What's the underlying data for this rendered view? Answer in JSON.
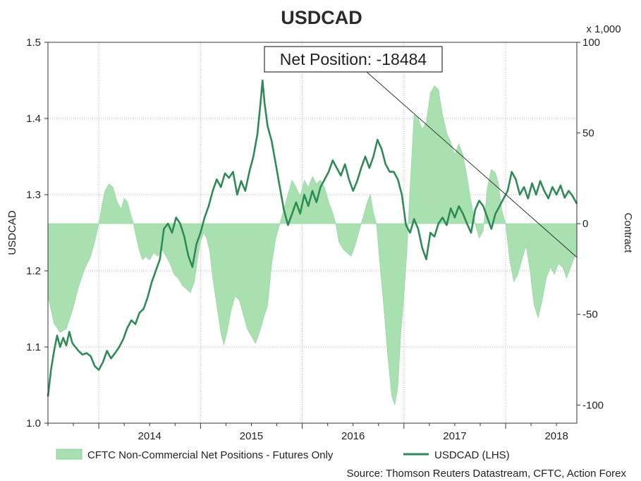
{
  "chart_data": {
    "type": "line+area",
    "title": "USDCAD",
    "x_axis": {
      "labels": [
        "2014",
        "2015",
        "2016",
        "2017",
        "2018"
      ],
      "range": [
        2013.5,
        2018.7
      ]
    },
    "y_left": {
      "label": "USDCAD",
      "range": [
        1.0,
        1.5
      ],
      "ticks": [
        "1.0",
        "1.1",
        "1.2",
        "1.3",
        "1.4",
        "1.5"
      ]
    },
    "y_right": {
      "label": "Contract",
      "unit_label": "x 1,000",
      "range": [
        -110,
        100
      ],
      "ticks": [
        "-100",
        "-50",
        "0",
        "50",
        "100"
      ]
    },
    "grid": "dotted",
    "series": [
      {
        "name": "CFTC Non-Commercial Net Positions - Futures Only",
        "type": "area",
        "axis": "right",
        "color": "#a8e0b0",
        "points": [
          [
            2013.5,
            -40
          ],
          [
            2013.56,
            -55
          ],
          [
            2013.62,
            -60
          ],
          [
            2013.68,
            -58
          ],
          [
            2013.74,
            -48
          ],
          [
            2013.8,
            -35
          ],
          [
            2013.86,
            -25
          ],
          [
            2013.92,
            -18
          ],
          [
            2013.96,
            -10
          ],
          [
            2014.0,
            0
          ],
          [
            2014.03,
            10
          ],
          [
            2014.06,
            18
          ],
          [
            2014.1,
            22
          ],
          [
            2014.14,
            20
          ],
          [
            2014.18,
            12
          ],
          [
            2014.22,
            8
          ],
          [
            2014.25,
            14
          ],
          [
            2014.28,
            12
          ],
          [
            2014.31,
            6
          ],
          [
            2014.34,
            0
          ],
          [
            2014.37,
            -8
          ],
          [
            2014.4,
            -15
          ],
          [
            2014.43,
            -20
          ],
          [
            2014.46,
            -18
          ],
          [
            2014.5,
            -20
          ],
          [
            2014.54,
            -16
          ],
          [
            2014.58,
            -18
          ],
          [
            2014.62,
            -14
          ],
          [
            2014.66,
            -18
          ],
          [
            2014.7,
            -22
          ],
          [
            2014.74,
            -28
          ],
          [
            2014.78,
            -30
          ],
          [
            2014.82,
            -34
          ],
          [
            2014.86,
            -36
          ],
          [
            2014.9,
            -38
          ],
          [
            2014.94,
            -32
          ],
          [
            2014.97,
            -20
          ],
          [
            2015.0,
            -10
          ],
          [
            2015.03,
            -5
          ],
          [
            2015.06,
            -8
          ],
          [
            2015.09,
            -15
          ],
          [
            2015.12,
            -30
          ],
          [
            2015.16,
            -45
          ],
          [
            2015.2,
            -60
          ],
          [
            2015.23,
            -67
          ],
          [
            2015.26,
            -60
          ],
          [
            2015.3,
            -48
          ],
          [
            2015.34,
            -40
          ],
          [
            2015.38,
            -42
          ],
          [
            2015.42,
            -50
          ],
          [
            2015.46,
            -58
          ],
          [
            2015.5,
            -62
          ],
          [
            2015.54,
            -66
          ],
          [
            2015.58,
            -60
          ],
          [
            2015.62,
            -52
          ],
          [
            2015.66,
            -45
          ],
          [
            2015.7,
            -22
          ],
          [
            2015.74,
            -8
          ],
          [
            2015.78,
            0
          ],
          [
            2015.82,
            8
          ],
          [
            2015.86,
            16
          ],
          [
            2015.9,
            24
          ],
          [
            2015.94,
            20
          ],
          [
            2015.98,
            15
          ],
          [
            2016.02,
            24
          ],
          [
            2016.06,
            20
          ],
          [
            2016.1,
            26
          ],
          [
            2016.14,
            22
          ],
          [
            2016.18,
            24
          ],
          [
            2016.22,
            20
          ],
          [
            2016.26,
            12
          ],
          [
            2016.3,
            6
          ],
          [
            2016.33,
            0
          ],
          [
            2016.36,
            -10
          ],
          [
            2016.4,
            -14
          ],
          [
            2016.44,
            -16
          ],
          [
            2016.48,
            -18
          ],
          [
            2016.52,
            -12
          ],
          [
            2016.56,
            -4
          ],
          [
            2016.6,
            4
          ],
          [
            2016.64,
            12
          ],
          [
            2016.67,
            16
          ],
          [
            2016.7,
            6
          ],
          [
            2016.73,
            0
          ],
          [
            2016.76,
            -20
          ],
          [
            2016.8,
            -45
          ],
          [
            2016.84,
            -72
          ],
          [
            2016.88,
            -95
          ],
          [
            2016.91,
            -100
          ],
          [
            2016.94,
            -90
          ],
          [
            2016.97,
            -60
          ],
          [
            2017.0,
            -40
          ],
          [
            2017.03,
            -15
          ],
          [
            2017.06,
            20
          ],
          [
            2017.1,
            60
          ],
          [
            2017.14,
            58
          ],
          [
            2017.18,
            52
          ],
          [
            2017.22,
            56
          ],
          [
            2017.26,
            72
          ],
          [
            2017.3,
            76
          ],
          [
            2017.34,
            74
          ],
          [
            2017.38,
            60
          ],
          [
            2017.42,
            50
          ],
          [
            2017.46,
            45
          ],
          [
            2017.5,
            38
          ],
          [
            2017.54,
            44
          ],
          [
            2017.58,
            38
          ],
          [
            2017.62,
            26
          ],
          [
            2017.66,
            12
          ],
          [
            2017.7,
            0
          ],
          [
            2017.74,
            -8
          ],
          [
            2017.78,
            -4
          ],
          [
            2017.82,
            20
          ],
          [
            2017.86,
            30
          ],
          [
            2017.9,
            28
          ],
          [
            2017.93,
            22
          ],
          [
            2017.96,
            8
          ],
          [
            2018.0,
            0
          ],
          [
            2018.04,
            -20
          ],
          [
            2018.08,
            -32
          ],
          [
            2018.12,
            -28
          ],
          [
            2018.16,
            -20
          ],
          [
            2018.2,
            -12
          ],
          [
            2018.24,
            -26
          ],
          [
            2018.28,
            -45
          ],
          [
            2018.32,
            -52
          ],
          [
            2018.36,
            -42
          ],
          [
            2018.4,
            -30
          ],
          [
            2018.44,
            -24
          ],
          [
            2018.48,
            -28
          ],
          [
            2018.52,
            -22
          ],
          [
            2018.56,
            -24
          ],
          [
            2018.6,
            -30
          ],
          [
            2018.64,
            -24
          ],
          [
            2018.68,
            -18
          ],
          [
            2018.7,
            -18
          ]
        ]
      },
      {
        "name": "USDCAD (LHS)",
        "type": "line",
        "axis": "left",
        "color": "#2e8b57",
        "points": [
          [
            2013.5,
            1.035
          ],
          [
            2013.53,
            1.07
          ],
          [
            2013.56,
            1.095
          ],
          [
            2013.59,
            1.115
          ],
          [
            2013.62,
            1.1
          ],
          [
            2013.65,
            1.112
          ],
          [
            2013.68,
            1.102
          ],
          [
            2013.71,
            1.12
          ],
          [
            2013.74,
            1.105
          ],
          [
            2013.77,
            1.1
          ],
          [
            2013.8,
            1.095
          ],
          [
            2013.84,
            1.09
          ],
          [
            2013.88,
            1.092
          ],
          [
            2013.92,
            1.088
          ],
          [
            2013.96,
            1.075
          ],
          [
            2014.0,
            1.07
          ],
          [
            2014.04,
            1.08
          ],
          [
            2014.08,
            1.095
          ],
          [
            2014.12,
            1.085
          ],
          [
            2014.16,
            1.092
          ],
          [
            2014.2,
            1.1
          ],
          [
            2014.24,
            1.11
          ],
          [
            2014.28,
            1.125
          ],
          [
            2014.32,
            1.135
          ],
          [
            2014.36,
            1.13
          ],
          [
            2014.4,
            1.145
          ],
          [
            2014.44,
            1.15
          ],
          [
            2014.48,
            1.165
          ],
          [
            2014.52,
            1.185
          ],
          [
            2014.56,
            1.2
          ],
          [
            2014.6,
            1.215
          ],
          [
            2014.64,
            1.255
          ],
          [
            2014.68,
            1.262
          ],
          [
            2014.72,
            1.25
          ],
          [
            2014.76,
            1.27
          ],
          [
            2014.8,
            1.262
          ],
          [
            2014.84,
            1.245
          ],
          [
            2014.88,
            1.22
          ],
          [
            2014.92,
            1.205
          ],
          [
            2014.96,
            1.235
          ],
          [
            2015.0,
            1.25
          ],
          [
            2015.04,
            1.27
          ],
          [
            2015.08,
            1.285
          ],
          [
            2015.12,
            1.305
          ],
          [
            2015.16,
            1.32
          ],
          [
            2015.2,
            1.31
          ],
          [
            2015.24,
            1.328
          ],
          [
            2015.28,
            1.322
          ],
          [
            2015.32,
            1.33
          ],
          [
            2015.36,
            1.3
          ],
          [
            2015.4,
            1.318
          ],
          [
            2015.44,
            1.305
          ],
          [
            2015.48,
            1.33
          ],
          [
            2015.52,
            1.35
          ],
          [
            2015.56,
            1.38
          ],
          [
            2015.59,
            1.42
          ],
          [
            2015.61,
            1.45
          ],
          [
            2015.63,
            1.42
          ],
          [
            2015.66,
            1.39
          ],
          [
            2015.7,
            1.37
          ],
          [
            2015.74,
            1.34
          ],
          [
            2015.78,
            1.31
          ],
          [
            2015.82,
            1.28
          ],
          [
            2015.86,
            1.26
          ],
          [
            2015.9,
            1.275
          ],
          [
            2015.94,
            1.29
          ],
          [
            2015.98,
            1.275
          ],
          [
            2016.02,
            1.3
          ],
          [
            2016.06,
            1.285
          ],
          [
            2016.1,
            1.305
          ],
          [
            2016.14,
            1.29
          ],
          [
            2016.18,
            1.31
          ],
          [
            2016.22,
            1.32
          ],
          [
            2016.26,
            1.33
          ],
          [
            2016.3,
            1.345
          ],
          [
            2016.34,
            1.335
          ],
          [
            2016.38,
            1.325
          ],
          [
            2016.42,
            1.34
          ],
          [
            2016.46,
            1.32
          ],
          [
            2016.5,
            1.305
          ],
          [
            2016.54,
            1.318
          ],
          [
            2016.58,
            1.335
          ],
          [
            2016.62,
            1.35
          ],
          [
            2016.66,
            1.335
          ],
          [
            2016.7,
            1.35
          ],
          [
            2016.74,
            1.372
          ],
          [
            2016.78,
            1.36
          ],
          [
            2016.82,
            1.34
          ],
          [
            2016.86,
            1.33
          ],
          [
            2016.9,
            1.33
          ],
          [
            2016.94,
            1.32
          ],
          [
            2016.98,
            1.3
          ],
          [
            2017.02,
            1.26
          ],
          [
            2017.06,
            1.25
          ],
          [
            2017.1,
            1.268
          ],
          [
            2017.14,
            1.255
          ],
          [
            2017.18,
            1.23
          ],
          [
            2017.22,
            1.215
          ],
          [
            2017.26,
            1.25
          ],
          [
            2017.3,
            1.245
          ],
          [
            2017.34,
            1.262
          ],
          [
            2017.38,
            1.27
          ],
          [
            2017.42,
            1.26
          ],
          [
            2017.46,
            1.282
          ],
          [
            2017.5,
            1.27
          ],
          [
            2017.54,
            1.285
          ],
          [
            2017.58,
            1.275
          ],
          [
            2017.62,
            1.262
          ],
          [
            2017.66,
            1.25
          ],
          [
            2017.7,
            1.28
          ],
          [
            2017.74,
            1.292
          ],
          [
            2017.78,
            1.285
          ],
          [
            2017.82,
            1.27
          ],
          [
            2017.86,
            1.255
          ],
          [
            2017.9,
            1.275
          ],
          [
            2017.94,
            1.285
          ],
          [
            2017.98,
            1.295
          ],
          [
            2018.02,
            1.305
          ],
          [
            2018.06,
            1.33
          ],
          [
            2018.1,
            1.32
          ],
          [
            2018.14,
            1.3
          ],
          [
            2018.18,
            1.31
          ],
          [
            2018.22,
            1.295
          ],
          [
            2018.26,
            1.315
          ],
          [
            2018.3,
            1.3
          ],
          [
            2018.34,
            1.318
          ],
          [
            2018.38,
            1.305
          ],
          [
            2018.42,
            1.295
          ],
          [
            2018.46,
            1.31
          ],
          [
            2018.5,
            1.3
          ],
          [
            2018.54,
            1.312
          ],
          [
            2018.58,
            1.296
          ],
          [
            2018.62,
            1.305
          ],
          [
            2018.66,
            1.298
          ],
          [
            2018.7,
            1.288
          ]
        ]
      }
    ],
    "annotation": {
      "text": "Net Position: -18484",
      "target": [
        2018.7,
        -18.484
      ]
    },
    "legend": {
      "placement": "bottom",
      "items": [
        {
          "label": "CFTC Non-Commercial Net Positions - Futures Only",
          "kind": "area"
        },
        {
          "label": "USDCAD (LHS)",
          "kind": "line"
        }
      ]
    },
    "source": "Source: Thomson Reuters Datastream, CFTC, Action Forex"
  }
}
